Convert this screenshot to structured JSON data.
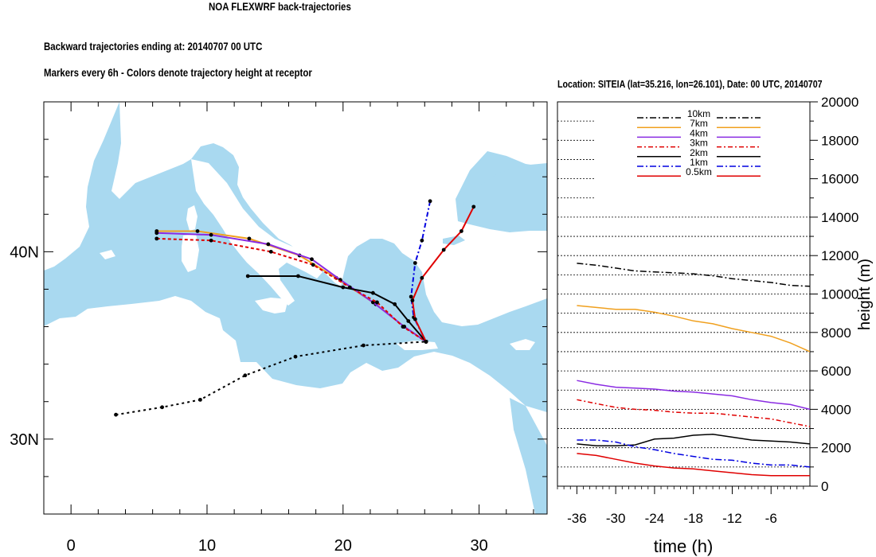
{
  "title": "NOA FLEXWRF back-trajectories",
  "subtitle_1": "Backward trajectories ending at: 20140707  00 UTC",
  "subtitle_2": "Markers every 6h - Colors denote trajectory height at receptor",
  "colors": {
    "sea": "#a9d9f0",
    "land": "#ffffff",
    "10km": "#000000",
    "7km": "#f0a01e",
    "4km": "#8a2be2",
    "3km": "#e00000",
    "2km": "#000000",
    "1km": "#0000e0",
    "0.5km": "#e00000"
  },
  "chart_data": [
    {
      "type": "map-trajectories",
      "xticks": [
        "0",
        "10",
        "20",
        "30"
      ],
      "yticks": [
        "30N",
        "40N"
      ],
      "xlim": [
        -2,
        35
      ],
      "ylim": [
        26,
        48
      ],
      "receptor": {
        "lon": 26.101,
        "lat": 35.216
      },
      "series": [
        {
          "name": "10km",
          "color": "#000000",
          "dash": "3,4",
          "points": [
            [
              3.3,
              31.3
            ],
            [
              6.7,
              31.7
            ],
            [
              9.5,
              32.1
            ],
            [
              12.8,
              33.4
            ],
            [
              16.5,
              34.4
            ],
            [
              21.5,
              35.0
            ],
            [
              26.1,
              35.2
            ]
          ]
        },
        {
          "name": "7km",
          "color": "#f0a01e",
          "dash": "",
          "points": [
            [
              6.3,
              41.1
            ],
            [
              9.3,
              41.1
            ],
            [
              13.1,
              40.7
            ],
            [
              16.8,
              39.8
            ],
            [
              19.5,
              38.6
            ],
            [
              22.4,
              37.2
            ],
            [
              24.5,
              36.0
            ],
            [
              26.1,
              35.2
            ]
          ]
        },
        {
          "name": "4km",
          "color": "#8a2be2",
          "dash": "",
          "points": [
            [
              6.3,
              41.0
            ],
            [
              10.3,
              40.9
            ],
            [
              14.5,
              40.4
            ],
            [
              17.7,
              39.6
            ],
            [
              19.8,
              38.5
            ],
            [
              22.2,
              37.3
            ],
            [
              24.5,
              36.0
            ],
            [
              26.1,
              35.2
            ]
          ]
        },
        {
          "name": "3km",
          "color": "#e00000",
          "dash": "4,3",
          "points": [
            [
              6.3,
              40.7
            ],
            [
              10.3,
              40.6
            ],
            [
              14.7,
              40.0
            ],
            [
              17.8,
              39.3
            ],
            [
              20.5,
              38.1
            ],
            [
              22.5,
              37.3
            ],
            [
              24.4,
              36.0
            ],
            [
              26.1,
              35.2
            ]
          ]
        },
        {
          "name": "2km",
          "color": "#000000",
          "dash": "",
          "points": [
            [
              13.0,
              38.7
            ],
            [
              16.7,
              38.7
            ],
            [
              20.0,
              38.1
            ],
            [
              22.2,
              37.8
            ],
            [
              23.8,
              37.2
            ],
            [
              24.8,
              36.3
            ],
            [
              26.1,
              35.2
            ]
          ]
        },
        {
          "name": "1km",
          "color": "#0000e0",
          "dash": "6,3,2,3",
          "points": [
            [
              26.4,
              42.7
            ],
            [
              25.8,
              40.6
            ],
            [
              25.3,
              39.4
            ],
            [
              25.0,
              37.6
            ],
            [
              25.2,
              36.5
            ],
            [
              26.1,
              35.2
            ]
          ]
        },
        {
          "name": "0.5km",
          "color": "#e00000",
          "dash": "",
          "points": [
            [
              29.6,
              42.4
            ],
            [
              28.7,
              41.1
            ],
            [
              27.4,
              40.1
            ],
            [
              25.8,
              38.6
            ],
            [
              25.1,
              37.4
            ],
            [
              25.3,
              36.4
            ],
            [
              26.1,
              35.2
            ]
          ]
        }
      ]
    },
    {
      "type": "line",
      "title": "Location: SITEIA (lat=35.216,  lon=26.101), Date: 00 UTC, 20140707",
      "xlabel": "time (h)",
      "ylabel": "height (m)",
      "xticks": [
        "-36",
        "-30",
        "-24",
        "-18",
        "-12",
        "-6"
      ],
      "xlim": [
        -39,
        0
      ],
      "ylim": [
        0,
        20000
      ],
      "yticks": [
        "0",
        "2000",
        "4000",
        "6000",
        "8000",
        "10000",
        "12000",
        "14000",
        "16000",
        "18000",
        "20000"
      ],
      "legend_position": "top",
      "x": [
        -36,
        -33,
        -30,
        -27,
        -24,
        -21,
        -18,
        -15,
        -12,
        -9,
        -6,
        -3,
        0
      ],
      "series": [
        {
          "name": "10km",
          "color": "#000000",
          "dash": "8,3,2,3",
          "values": [
            11600,
            11500,
            11350,
            11200,
            11150,
            11100,
            11050,
            10950,
            10800,
            10700,
            10600,
            10450,
            10400
          ]
        },
        {
          "name": "7km",
          "color": "#f0a01e",
          "dash": "",
          "values": [
            9400,
            9300,
            9200,
            9200,
            9050,
            8850,
            8600,
            8450,
            8200,
            8000,
            7800,
            7450,
            7000
          ]
        },
        {
          "name": "4km",
          "color": "#8a2be2",
          "dash": "",
          "values": [
            5500,
            5300,
            5150,
            5100,
            5050,
            4950,
            4900,
            4800,
            4700,
            4500,
            4350,
            4250,
            4000
          ]
        },
        {
          "name": "3km",
          "color": "#e00000",
          "dash": "6,3,2,3",
          "values": [
            4500,
            4300,
            4100,
            4000,
            3950,
            3850,
            3800,
            3800,
            3700,
            3600,
            3500,
            3300,
            3100
          ]
        },
        {
          "name": "2km",
          "color": "#000000",
          "dash": "",
          "values": [
            2200,
            2100,
            2100,
            2150,
            2450,
            2500,
            2650,
            2700,
            2550,
            2400,
            2350,
            2300,
            2200
          ]
        },
        {
          "name": "1km",
          "color": "#0000e0",
          "dash": "8,3,2,3",
          "values": [
            2400,
            2400,
            2300,
            2050,
            1900,
            1700,
            1550,
            1400,
            1350,
            1200,
            1100,
            1100,
            1000
          ]
        },
        {
          "name": "0.5km",
          "color": "#e00000",
          "dash": "",
          "values": [
            1700,
            1600,
            1400,
            1200,
            1050,
            950,
            900,
            800,
            700,
            600,
            550,
            550,
            550
          ]
        }
      ]
    }
  ]
}
